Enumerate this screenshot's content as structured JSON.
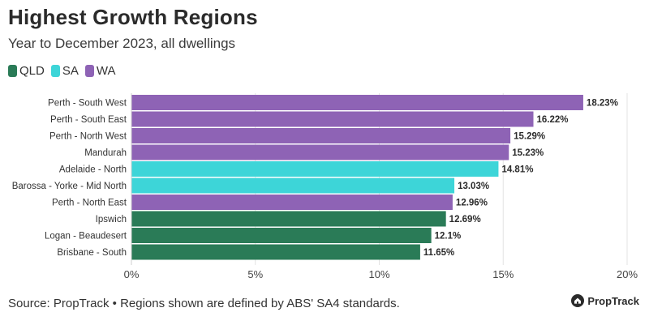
{
  "title": "Highest Growth Regions",
  "subtitle": "Year to December 2023, all dwellings",
  "legend": [
    {
      "label": "QLD",
      "color": "#2a7b57"
    },
    {
      "label": "SA",
      "color": "#3dd5d8"
    },
    {
      "label": "WA",
      "color": "#8e63b5"
    }
  ],
  "footer": "Source: PropTrack • Regions shown are defined by ABS' SA4 standards.",
  "brand": {
    "name": "PropTrack",
    "icon": "proptrack-logo-icon"
  },
  "chart_data": {
    "type": "bar",
    "orientation": "horizontal",
    "title": "Highest Growth Regions",
    "subtitle": "Year to December 2023, all dwellings",
    "categories": [
      "Perth - South West",
      "Perth - South East",
      "Perth - North West",
      "Mandurah",
      "Adelaide - North",
      "Barossa - Yorke - Mid North",
      "Perth - North East",
      "Ipswich",
      "Logan - Beaudesert",
      "Brisbane - South"
    ],
    "values": [
      18.23,
      16.22,
      15.29,
      15.23,
      14.81,
      13.03,
      12.96,
      12.69,
      12.1,
      11.65
    ],
    "value_labels": [
      "18.23%",
      "16.22%",
      "15.29%",
      "15.23%",
      "14.81%",
      "13.03%",
      "12.96%",
      "12.69%",
      "12.1%",
      "11.65%"
    ],
    "groups": [
      "WA",
      "WA",
      "WA",
      "WA",
      "SA",
      "SA",
      "WA",
      "QLD",
      "QLD",
      "QLD"
    ],
    "group_colors": {
      "QLD": "#2a7b57",
      "SA": "#3dd5d8",
      "WA": "#8e63b5"
    },
    "xlim": [
      0,
      20
    ],
    "xticks": [
      0,
      5,
      10,
      15,
      20
    ],
    "xtick_labels": [
      "0%",
      "5%",
      "10%",
      "15%",
      "20%"
    ],
    "xlabel": "",
    "ylabel": "",
    "grid": true,
    "legend_position": "top-left"
  }
}
